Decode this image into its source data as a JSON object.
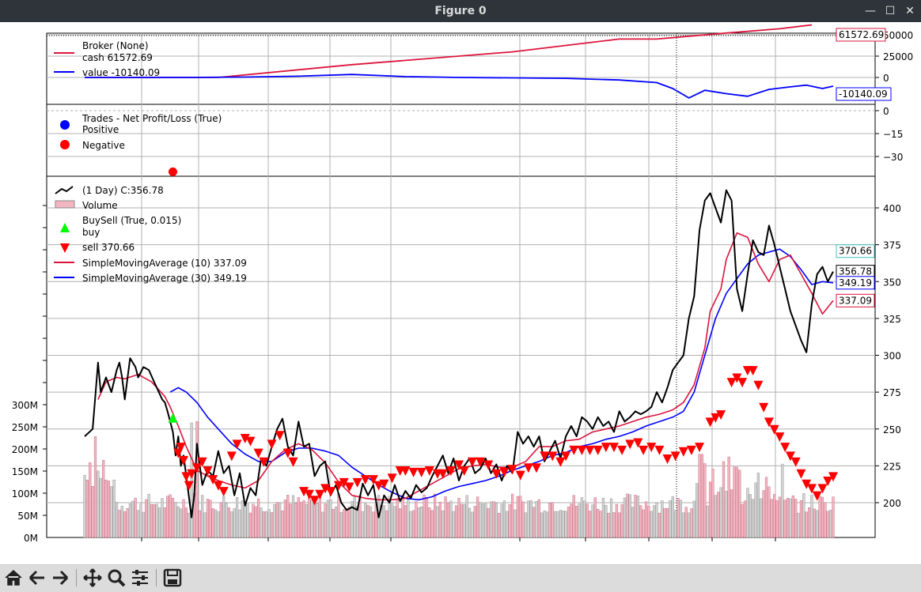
{
  "window": {
    "title": "Figure 0",
    "buttons": {
      "minimize": "minimize-icon",
      "maximize": "maximize-icon",
      "close": "close-icon"
    }
  },
  "toolbar": {
    "items": [
      "home-icon",
      "back-arrow-icon",
      "forward-arrow-icon",
      "pan-icon",
      "zoom-icon",
      "configure-subplots-icon",
      "save-icon"
    ]
  },
  "chart_data": [
    {
      "type": "line",
      "panel": "broker",
      "legend": {
        "title": "Broker (None)",
        "placement": "top-left"
      },
      "series": [
        {
          "name": "cash",
          "legend_label": "cash 61572.69",
          "color": "#dc143c",
          "last_value": 61572.69,
          "last_label": "61572.69",
          "x": [
            0,
            20,
            50,
            100,
            160,
            200,
            214,
            240,
            260,
            272
          ],
          "values": [
            0,
            0,
            0,
            15000,
            30000,
            45000,
            45000,
            52000,
            57000,
            61572.69
          ]
        },
        {
          "name": "value",
          "legend_label": "value -10140.09",
          "color": "#0000ff",
          "last_value": -10140.09,
          "last_label": "-10140.09",
          "x": [
            0,
            20,
            40,
            60,
            80,
            100,
            120,
            140,
            160,
            180,
            200,
            214,
            220,
            226,
            232,
            240,
            248,
            256,
            264,
            270,
            276,
            280
          ],
          "values": [
            0,
            0,
            0,
            500,
            1500,
            3500,
            1000,
            0,
            -500,
            -1000,
            -3000,
            -6000,
            -13000,
            -24000,
            -15000,
            -19000,
            -22000,
            -14000,
            -11000,
            -9000,
            -13000,
            -10140.09
          ]
        }
      ],
      "yticks": [
        0,
        25000,
        50000
      ],
      "ytick_labels": [
        "0",
        "25000",
        "50000"
      ]
    },
    {
      "type": "scatter",
      "panel": "trades",
      "legend": {
        "title": "Trades - Net Profit/Loss (True)",
        "placement": "top-left"
      },
      "series": [
        {
          "name": "Positive",
          "color": "#0000ff",
          "points": []
        },
        {
          "name": "Negative",
          "color": "#ff0000",
          "points": [
            {
              "x": 33,
              "y": -40
            }
          ]
        }
      ],
      "yticks": [
        0,
        -15,
        -30
      ],
      "ytick_labels": [
        "0",
        "−15",
        "−30"
      ]
    },
    {
      "type": "line",
      "panel": "price",
      "legend": {
        "placement": "top-left"
      },
      "price_label": "(1 Day) C:356.78",
      "volume_label": "Volume",
      "buysell_label": "BuySell (True, 0.015)",
      "buy_label": "buy",
      "sell_label": "sell 370.66",
      "sma10_label": "SimpleMovingAverage (10) 337.09",
      "sma30_label": "SimpleMovingAverage (30) 349.19",
      "close": {
        "x": [
          0,
          3,
          5,
          6,
          8,
          10,
          12,
          13,
          14,
          15,
          17,
          19,
          20,
          22,
          24,
          26,
          28,
          29,
          30,
          31,
          32,
          33,
          34,
          35,
          36,
          37,
          38,
          40,
          41,
          42,
          44,
          46,
          48,
          50,
          52,
          54,
          56,
          58,
          60,
          62,
          64,
          66,
          68,
          70,
          72,
          74,
          76,
          78,
          80,
          82,
          84,
          86,
          88,
          90,
          92,
          94,
          96,
          98,
          100,
          102,
          104,
          106,
          108,
          110,
          112,
          114,
          116,
          118,
          120,
          122,
          124,
          126,
          128,
          130,
          132,
          134,
          136,
          138,
          140,
          142,
          144,
          146,
          148,
          150,
          152,
          154,
          156,
          158,
          160,
          162,
          164,
          166,
          168,
          170,
          172,
          174,
          176,
          178,
          180,
          182,
          184,
          186,
          188,
          190,
          192,
          194,
          196,
          198,
          200,
          202,
          204,
          206,
          208,
          210,
          212,
          214,
          216,
          218,
          220,
          222,
          224,
          226,
          228,
          230,
          232,
          234,
          236,
          238,
          240,
          242,
          244,
          246,
          248,
          250,
          252,
          254,
          256,
          258,
          260,
          262,
          264,
          266,
          268,
          270,
          272,
          274,
          276,
          278,
          280
        ],
        "values": [
          245,
          250,
          295,
          275,
          285,
          275,
          290,
          295,
          285,
          270,
          298,
          292,
          285,
          292,
          290,
          282,
          274,
          270,
          268,
          262,
          255,
          248,
          232,
          245,
          225,
          232,
          218,
          190,
          205,
          240,
          212,
          222,
          218,
          235,
          220,
          225,
          205,
          220,
          198,
          210,
          205,
          230,
          225,
          238,
          250,
          257,
          238,
          232,
          255,
          238,
          240,
          218,
          225,
          228,
          205,
          212,
          200,
          195,
          197,
          195,
          213,
          205,
          212,
          190,
          205,
          200,
          212,
          201,
          208,
          203,
          212,
          207,
          210,
          218,
          225,
          232,
          220,
          230,
          215,
          225,
          230,
          220,
          223,
          230,
          220,
          226,
          215,
          225,
          220,
          248,
          240,
          245,
          238,
          245,
          228,
          235,
          242,
          230,
          245,
          252,
          245,
          258,
          255,
          250,
          258,
          252,
          255,
          248,
          262,
          255,
          258,
          262,
          260,
          262,
          265,
          275,
          268,
          278,
          290,
          295,
          300,
          325,
          340,
          385,
          405,
          410,
          400,
          390,
          412,
          405,
          345,
          330,
          355,
          378,
          370,
          368,
          388,
          375,
          360,
          345,
          330,
          320,
          310,
          302,
          335,
          355,
          360,
          350,
          356.78
        ]
      },
      "sma10": {
        "x": [
          5,
          8,
          12,
          15,
          20,
          25,
          30,
          32,
          35,
          38,
          42,
          46,
          50,
          55,
          60,
          65,
          70,
          75,
          80,
          85,
          90,
          95,
          100,
          105,
          110,
          115,
          120,
          125,
          130,
          135,
          140,
          145,
          150,
          155,
          160,
          165,
          170,
          175,
          180,
          185,
          190,
          195,
          200,
          205,
          210,
          215,
          220,
          224,
          228,
          232,
          234,
          238,
          240,
          244,
          248,
          252,
          256,
          260,
          264,
          268,
          272,
          276,
          280
        ],
        "values": [
          270,
          282,
          285,
          284,
          287,
          282,
          272,
          265,
          252,
          238,
          222,
          218,
          215,
          212,
          210,
          215,
          228,
          236,
          240,
          236,
          227,
          214,
          205,
          203,
          202,
          202,
          203,
          208,
          213,
          218,
          223,
          225,
          226,
          224,
          224,
          228,
          238,
          238,
          242,
          243,
          248,
          250,
          252,
          255,
          258,
          260,
          263,
          268,
          280,
          305,
          330,
          345,
          365,
          383,
          380,
          362,
          350,
          365,
          368,
          355,
          342,
          328,
          337.09
        ]
      },
      "sma30": {
        "x": [
          32,
          35,
          38,
          42,
          46,
          50,
          55,
          60,
          65,
          70,
          75,
          80,
          85,
          90,
          95,
          100,
          105,
          110,
          115,
          120,
          125,
          130,
          135,
          140,
          145,
          150,
          155,
          160,
          165,
          170,
          175,
          180,
          185,
          190,
          195,
          200,
          205,
          210,
          215,
          220,
          224,
          228,
          232,
          236,
          240,
          244,
          248,
          252,
          256,
          260,
          264,
          268,
          272,
          276,
          280
        ],
        "values": [
          275,
          278,
          275,
          268,
          258,
          250,
          240,
          233,
          228,
          228,
          234,
          237,
          237,
          235,
          232,
          224,
          218,
          212,
          207,
          203,
          202,
          204,
          208,
          211,
          213,
          215,
          218,
          222,
          225,
          228,
          232,
          234,
          238,
          240,
          243,
          245,
          248,
          252,
          255,
          258,
          262,
          275,
          300,
          325,
          342,
          352,
          362,
          368,
          370,
          372,
          367,
          358,
          348,
          350,
          349.19
        ]
      },
      "buy_markers": [
        {
          "x": 33,
          "y": 257
        }
      ],
      "sell_markers": [
        {
          "x": 35,
          "y": 234
        },
        {
          "x": 36,
          "y": 238
        },
        {
          "x": 37,
          "y": 229
        },
        {
          "x": 38,
          "y": 218
        },
        {
          "x": 39,
          "y": 212
        },
        {
          "x": 40,
          "y": 220
        },
        {
          "x": 42,
          "y": 224
        },
        {
          "x": 44,
          "y": 228
        },
        {
          "x": 46,
          "y": 222
        },
        {
          "x": 48,
          "y": 216
        },
        {
          "x": 50,
          "y": 212
        },
        {
          "x": 52,
          "y": 208
        },
        {
          "x": 55,
          "y": 232
        },
        {
          "x": 57,
          "y": 240
        },
        {
          "x": 60,
          "y": 244
        },
        {
          "x": 62,
          "y": 242
        },
        {
          "x": 65,
          "y": 234
        },
        {
          "x": 67,
          "y": 228
        },
        {
          "x": 70,
          "y": 240
        },
        {
          "x": 73,
          "y": 246
        },
        {
          "x": 76,
          "y": 234
        },
        {
          "x": 78,
          "y": 228
        },
        {
          "x": 82,
          "y": 208
        },
        {
          "x": 84,
          "y": 206
        },
        {
          "x": 86,
          "y": 202
        },
        {
          "x": 88,
          "y": 206
        },
        {
          "x": 90,
          "y": 210
        },
        {
          "x": 92,
          "y": 208
        },
        {
          "x": 95,
          "y": 212
        },
        {
          "x": 97,
          "y": 214
        },
        {
          "x": 99,
          "y": 211
        },
        {
          "x": 102,
          "y": 214
        },
        {
          "x": 105,
          "y": 216
        },
        {
          "x": 108,
          "y": 216
        },
        {
          "x": 110,
          "y": 212
        },
        {
          "x": 112,
          "y": 213
        },
        {
          "x": 115,
          "y": 217
        },
        {
          "x": 118,
          "y": 222
        },
        {
          "x": 120,
          "y": 222
        },
        {
          "x": 123,
          "y": 221
        },
        {
          "x": 126,
          "y": 221
        },
        {
          "x": 129,
          "y": 222
        },
        {
          "x": 132,
          "y": 220
        },
        {
          "x": 134,
          "y": 220
        },
        {
          "x": 137,
          "y": 222
        },
        {
          "x": 140,
          "y": 226
        },
        {
          "x": 142,
          "y": 222
        },
        {
          "x": 145,
          "y": 228
        },
        {
          "x": 148,
          "y": 228
        },
        {
          "x": 151,
          "y": 226
        },
        {
          "x": 154,
          "y": 220
        },
        {
          "x": 157,
          "y": 221
        },
        {
          "x": 160,
          "y": 223
        },
        {
          "x": 163,
          "y": 219
        },
        {
          "x": 166,
          "y": 224
        },
        {
          "x": 169,
          "y": 224
        },
        {
          "x": 172,
          "y": 232
        },
        {
          "x": 175,
          "y": 232
        },
        {
          "x": 178,
          "y": 228
        },
        {
          "x": 180,
          "y": 232
        },
        {
          "x": 183,
          "y": 236
        },
        {
          "x": 186,
          "y": 236
        },
        {
          "x": 189,
          "y": 236
        },
        {
          "x": 192,
          "y": 236
        },
        {
          "x": 195,
          "y": 238
        },
        {
          "x": 198,
          "y": 238
        },
        {
          "x": 201,
          "y": 236
        },
        {
          "x": 204,
          "y": 240
        },
        {
          "x": 207,
          "y": 241
        },
        {
          "x": 209,
          "y": 236
        },
        {
          "x": 212,
          "y": 238
        },
        {
          "x": 215,
          "y": 236
        },
        {
          "x": 218,
          "y": 230
        },
        {
          "x": 221,
          "y": 232
        },
        {
          "x": 224,
          "y": 235
        },
        {
          "x": 227,
          "y": 236
        },
        {
          "x": 230,
          "y": 238
        },
        {
          "x": 234,
          "y": 255
        },
        {
          "x": 236,
          "y": 258
        },
        {
          "x": 238,
          "y": 260
        },
        {
          "x": 242,
          "y": 282
        },
        {
          "x": 244,
          "y": 285
        },
        {
          "x": 246,
          "y": 282
        },
        {
          "x": 248,
          "y": 290
        },
        {
          "x": 250,
          "y": 290
        },
        {
          "x": 252,
          "y": 280
        },
        {
          "x": 254,
          "y": 265
        },
        {
          "x": 256,
          "y": 255
        },
        {
          "x": 258,
          "y": 250
        },
        {
          "x": 260,
          "y": 245
        },
        {
          "x": 262,
          "y": 238
        },
        {
          "x": 264,
          "y": 232
        },
        {
          "x": 266,
          "y": 228
        },
        {
          "x": 268,
          "y": 220
        },
        {
          "x": 270,
          "y": 213
        },
        {
          "x": 272,
          "y": 210
        },
        {
          "x": 274,
          "y": 205
        },
        {
          "x": 276,
          "y": 210
        },
        {
          "x": 278,
          "y": 215
        },
        {
          "x": 280,
          "y": 218
        }
      ],
      "yticks": [
        200,
        225,
        250,
        275,
        300,
        325,
        350,
        375,
        400
      ],
      "ytick_labels": [
        "200",
        "225",
        "250",
        "275",
        "300",
        "325",
        "350",
        "375",
        "400"
      ],
      "labels": {
        "close": "356.78",
        "sma10": "337.09",
        "sma30": "349.19",
        "sell": "370.66"
      },
      "volume_axis": {
        "ticks": [
          0,
          50,
          100,
          150,
          200,
          250,
          300
        ],
        "tick_labels": [
          "0M",
          "50M",
          "100M",
          "150M",
          "200M",
          "250M",
          "300M"
        ]
      }
    }
  ]
}
